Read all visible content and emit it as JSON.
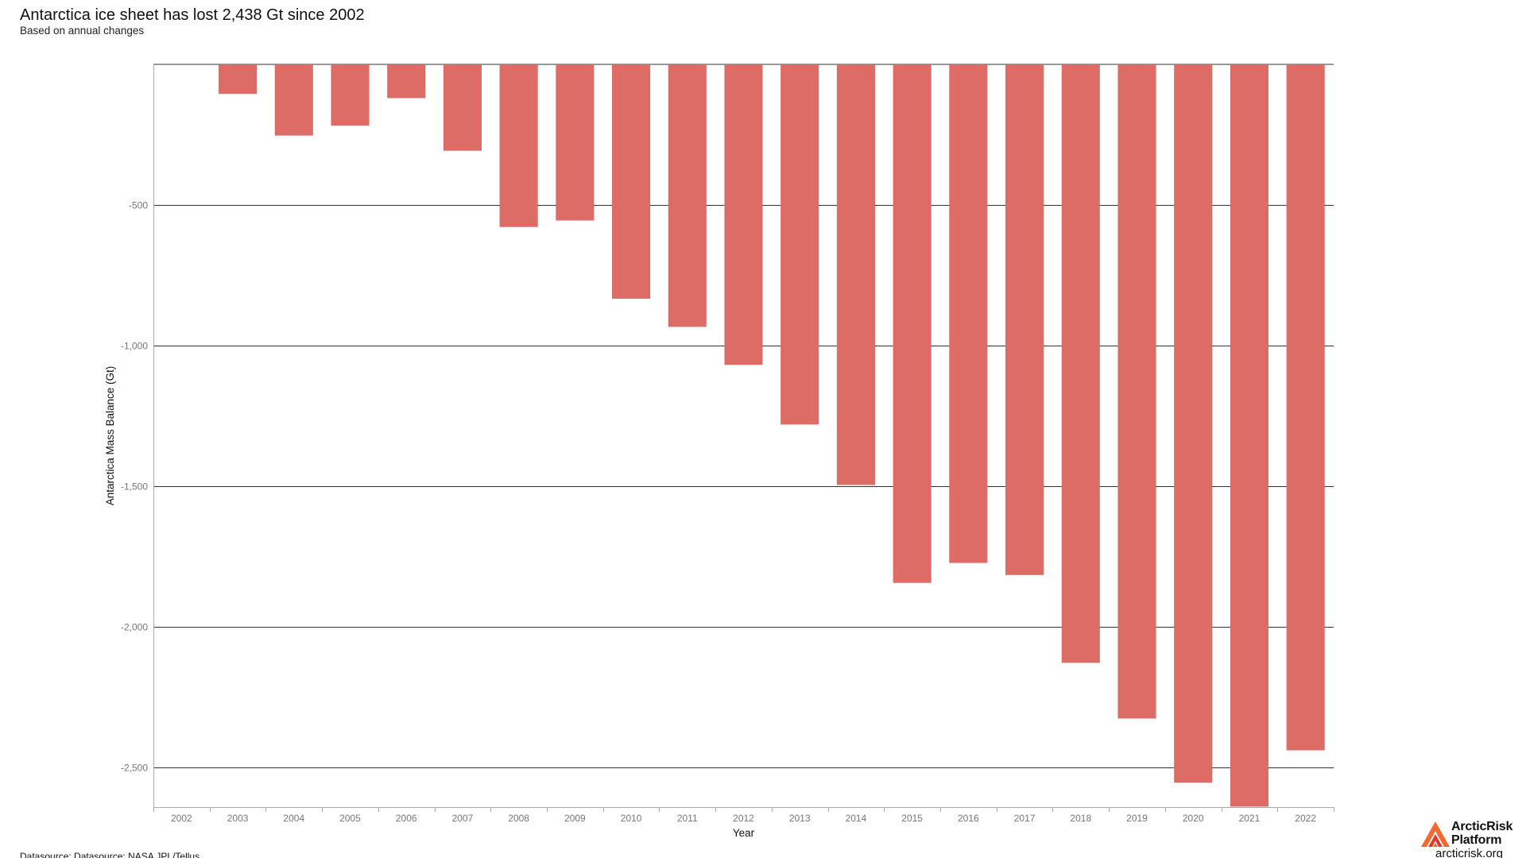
{
  "header": {
    "title": "Antarctica ice sheet has lost 2,438 Gt since 2002",
    "subtitle": "Based on annual changes"
  },
  "footer": {
    "datasource": "Datasource: Datasource: NASA JPL/Tellus"
  },
  "brand": {
    "name_line1": "ArcticRisk",
    "name_line2": "Platform",
    "url": "arcticrisk.org",
    "logo_icon": "arcticrisk-logo-icon"
  },
  "colors": {
    "bar": "#dd6c67",
    "gridline": "#333333",
    "tick_text": "#777777",
    "logo_orange": "#f26a2e",
    "logo_red": "#e1392b"
  },
  "chart_data": {
    "type": "bar",
    "xlabel": "Year",
    "ylabel": "Antarctica Mass Balance (Gt)",
    "categories": [
      "2002",
      "2003",
      "2004",
      "2005",
      "2006",
      "2007",
      "2008",
      "2009",
      "2010",
      "2011",
      "2012",
      "2013",
      "2014",
      "2015",
      "2016",
      "2017",
      "2018",
      "2019",
      "2020",
      "2021",
      "2022"
    ],
    "values": [
      0,
      -105,
      -253,
      -218,
      -120,
      -307,
      -578,
      -555,
      -833,
      -933,
      -1068,
      -1280,
      -1495,
      -1843,
      -1772,
      -1815,
      -2127,
      -2325,
      -2553,
      -2638,
      -2438
    ],
    "ylim": [
      -2640,
      0
    ],
    "yticks": [
      -500,
      -1000,
      -1500,
      -2000,
      -2500
    ],
    "ytick_labels": [
      "-500",
      "-1,000",
      "-1,500",
      "-2,000",
      "-2,500"
    ],
    "grid": true,
    "legend": "none"
  }
}
